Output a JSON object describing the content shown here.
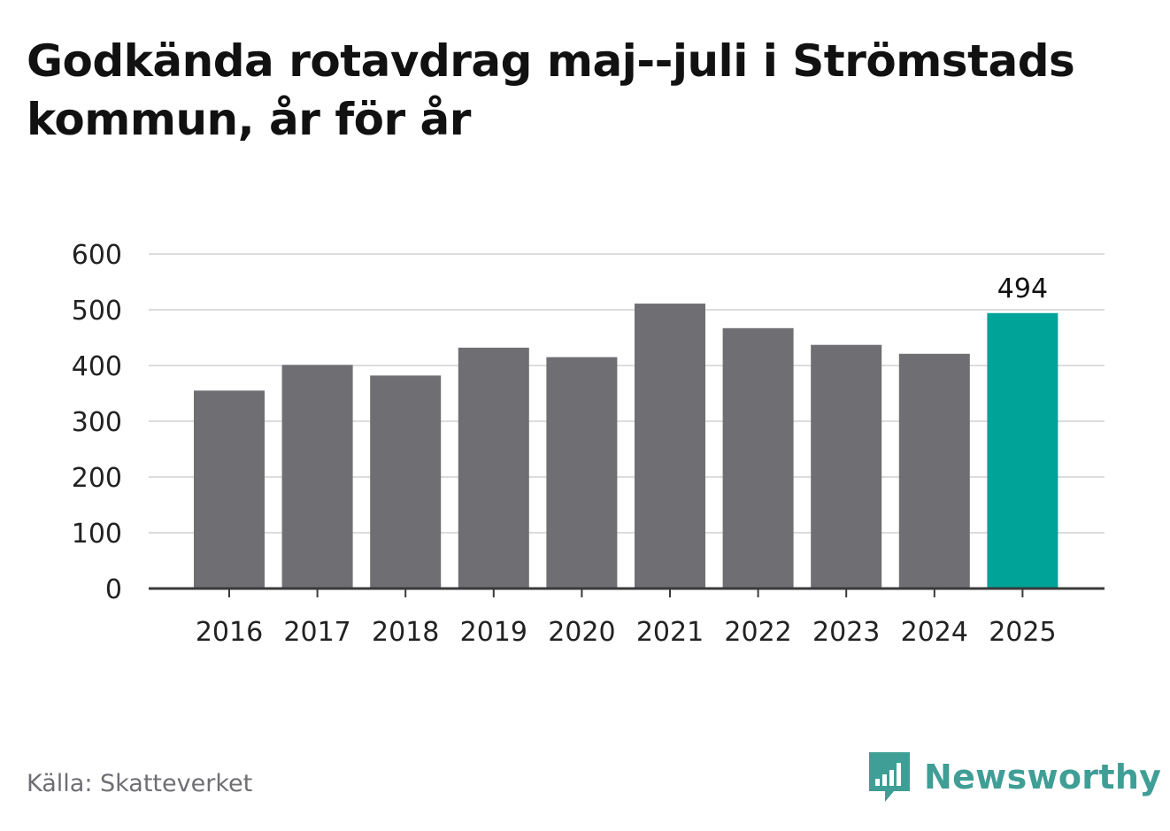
{
  "title": "Godkända rotavdrag maj--juli i Strömstads kommun, år för år",
  "source": "Källa: Skatteverket",
  "brand": {
    "name": "Newsworthy",
    "icon": "newsworthy-logo-icon",
    "color": "#3f9e95"
  },
  "colors": {
    "bar": "#6f6e73",
    "highlight": "#00a398",
    "grid": "#dcdcdc",
    "axis": "#3a3a3a",
    "text": "#222222"
  },
  "chart_data": {
    "type": "bar",
    "categories": [
      "2016",
      "2017",
      "2018",
      "2019",
      "2020",
      "2021",
      "2022",
      "2023",
      "2024",
      "2025"
    ],
    "values": [
      355,
      401,
      382,
      432,
      415,
      511,
      467,
      437,
      421,
      494
    ],
    "highlight_index": 9,
    "data_labels": [
      {
        "index": 9,
        "text": "494"
      }
    ],
    "yticks": [
      0,
      100,
      200,
      300,
      400,
      500,
      600
    ],
    "ylim": [
      0,
      600
    ],
    "grid": true,
    "legend": "none",
    "xlabel": "",
    "ylabel": ""
  }
}
